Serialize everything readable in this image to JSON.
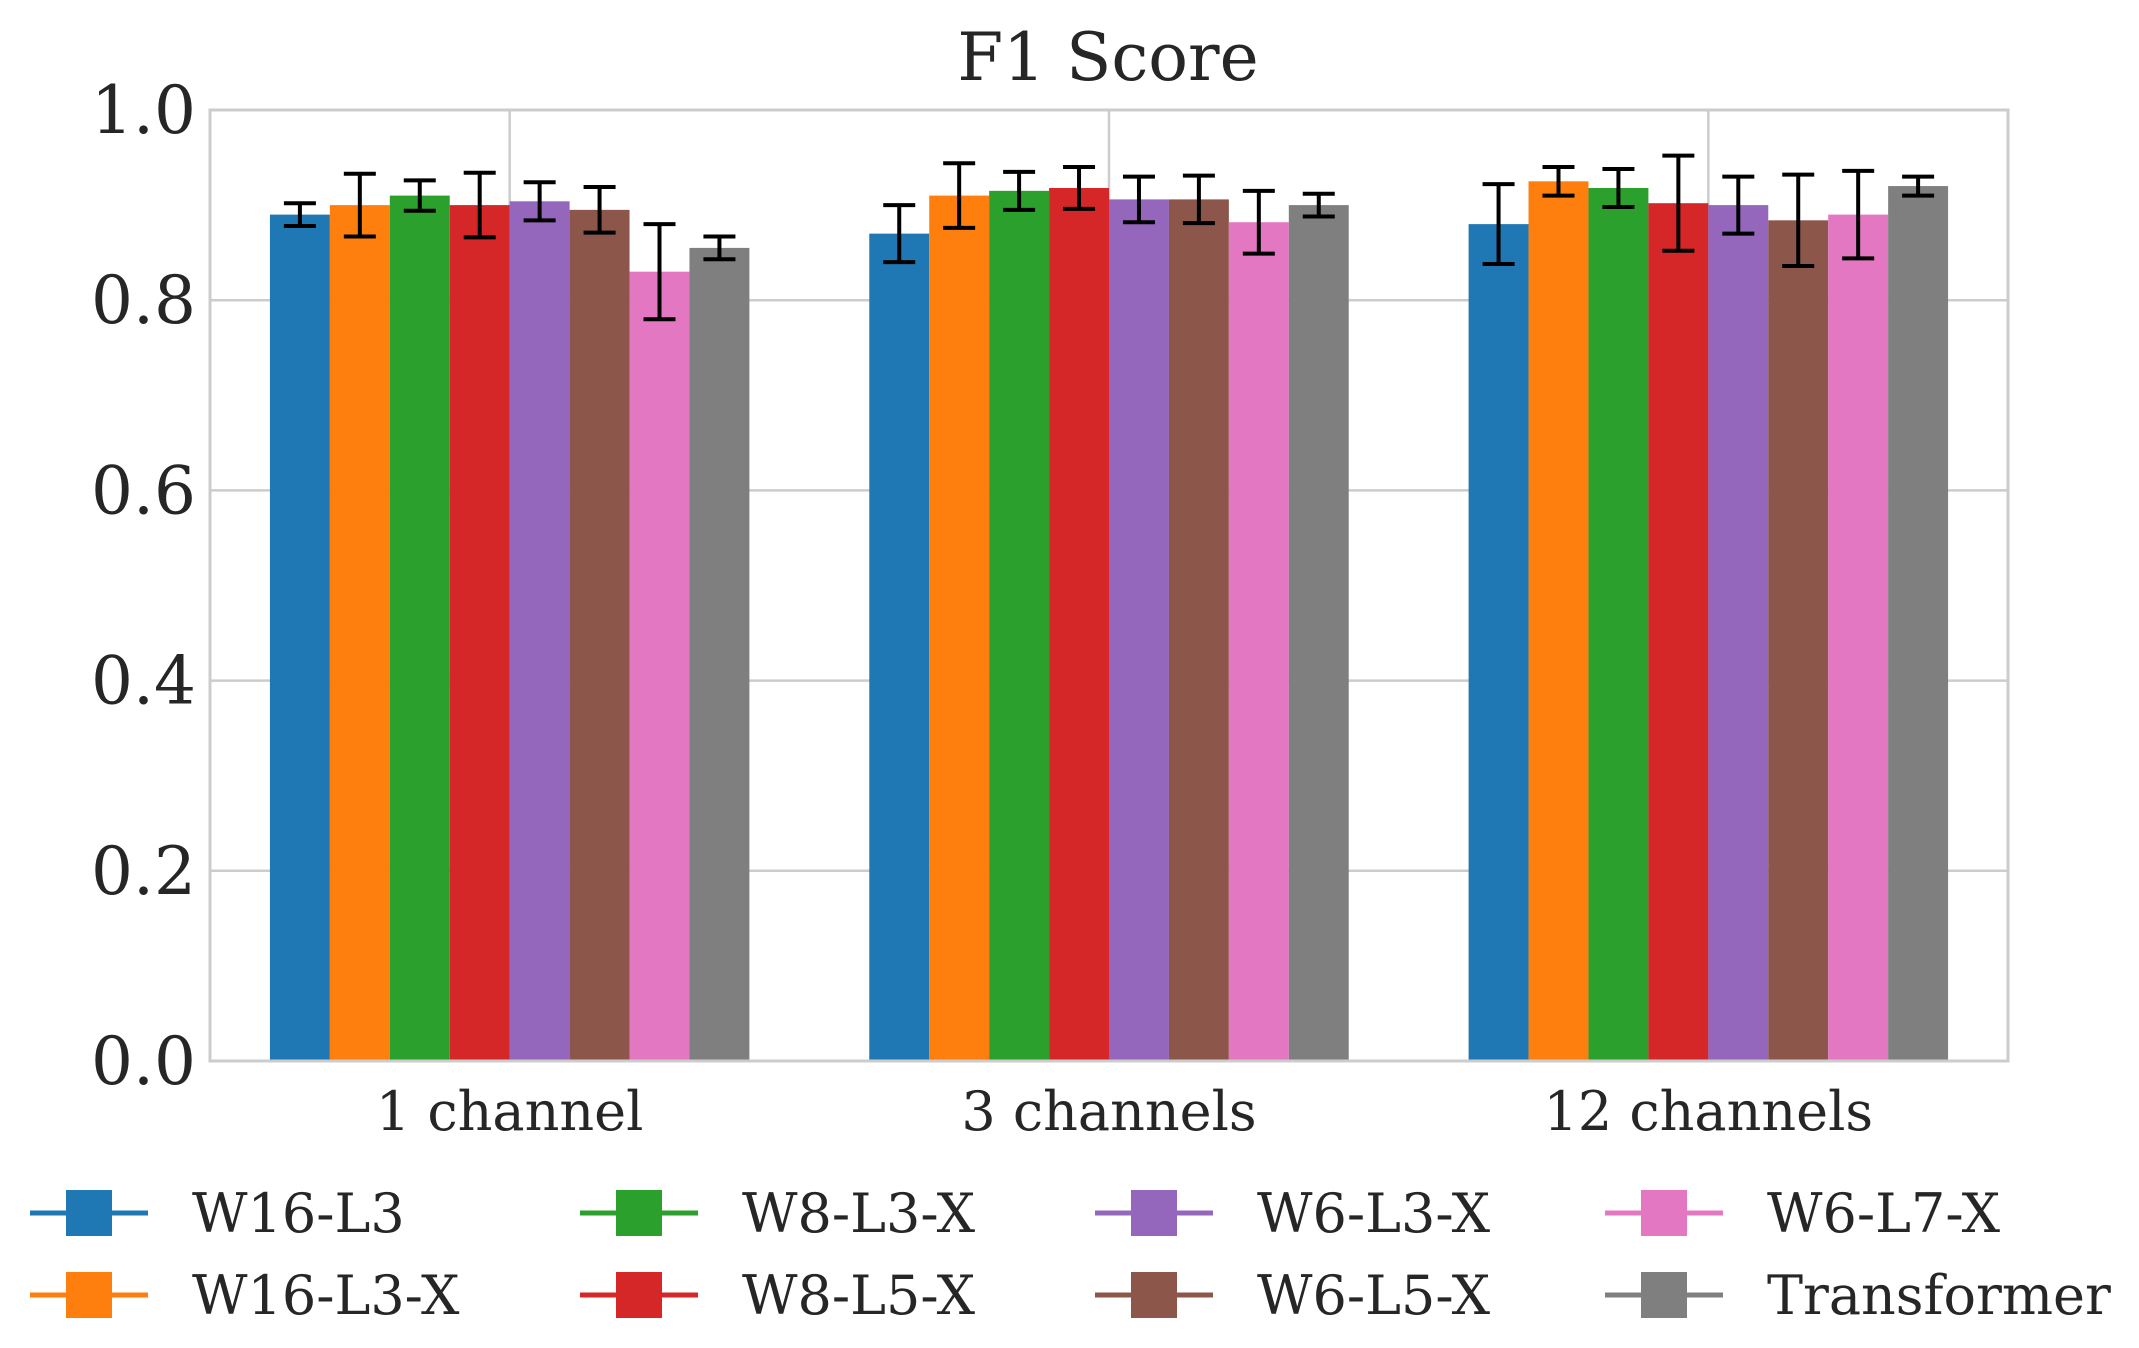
{
  "chart_data": {
    "type": "bar",
    "title": "F1 Score",
    "xlabel": "",
    "ylabel": "",
    "ylim": [
      0,
      1.0
    ],
    "yticks": [
      "0.0",
      "0.2",
      "0.4",
      "0.6",
      "0.8",
      "1.0"
    ],
    "categories": [
      "1 channel",
      "3 channels",
      "12 channels"
    ],
    "grid": true,
    "legend_position": "bottom",
    "series": [
      {
        "name": "W16-L3",
        "color": "#1f77b4",
        "values": [
          0.89,
          0.87,
          0.88
        ],
        "errors": [
          0.012,
          0.03,
          0.042
        ]
      },
      {
        "name": "W16-L3-X",
        "color": "#ff7f0e",
        "values": [
          0.9,
          0.91,
          0.925
        ],
        "errors": [
          0.033,
          0.034,
          0.015
        ]
      },
      {
        "name": "W8-L3-X",
        "color": "#2ca02c",
        "values": [
          0.91,
          0.915,
          0.918
        ],
        "errors": [
          0.016,
          0.02,
          0.02
        ]
      },
      {
        "name": "W8-L5-X",
        "color": "#d62728",
        "values": [
          0.9,
          0.918,
          0.902
        ],
        "errors": [
          0.034,
          0.022,
          0.05
        ]
      },
      {
        "name": "W6-L3-X",
        "color": "#9467bd",
        "values": [
          0.904,
          0.906,
          0.9
        ],
        "errors": [
          0.02,
          0.024,
          0.03
        ]
      },
      {
        "name": "W6-L5-X",
        "color": "#8c564b",
        "values": [
          0.895,
          0.906,
          0.884
        ],
        "errors": [
          0.024,
          0.025,
          0.048
        ]
      },
      {
        "name": "W6-L7-X",
        "color": "#e377c2",
        "values": [
          0.83,
          0.882,
          0.89
        ],
        "errors": [
          0.05,
          0.033,
          0.046
        ]
      },
      {
        "name": "Transformer",
        "color": "#7f7f7f",
        "values": [
          0.855,
          0.9,
          0.92
        ],
        "errors": [
          0.012,
          0.012,
          0.01
        ]
      }
    ]
  }
}
